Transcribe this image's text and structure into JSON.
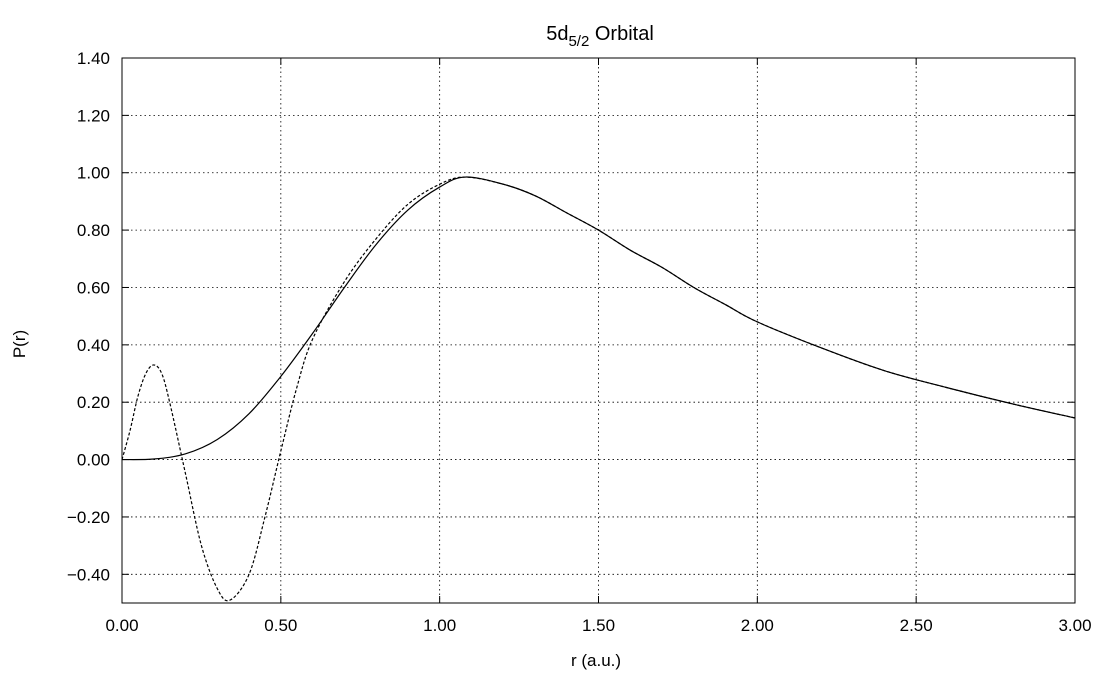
{
  "chart_data": {
    "type": "line",
    "title": {
      "main": "5d",
      "subscript": "5/2",
      "suffix": " Orbital"
    },
    "xlabel": "r (a.u.)",
    "ylabel": "P(r)",
    "xlim": [
      0,
      3.0
    ],
    "ylim": [
      -0.5,
      1.4
    ],
    "x_ticks": [
      0,
      0.5,
      1.0,
      1.5,
      2.0,
      2.5,
      3.0
    ],
    "x_tick_labels": [
      "0.00",
      "0.50",
      "1.00",
      "1.50",
      "2.00",
      "2.50",
      "3.00"
    ],
    "y_ticks": [
      -0.4,
      -0.2,
      0,
      0.2,
      0.4,
      0.6,
      0.8,
      1.0,
      1.2,
      1.4
    ],
    "y_tick_labels": [
      "−0.40",
      "−0.20",
      "0.00",
      "0.20",
      "0.40",
      "0.60",
      "0.80",
      "1.00",
      "1.20",
      "1.40"
    ],
    "grid": true,
    "series": [
      {
        "style": "solid",
        "color": "#000000",
        "points": [
          [
            0,
            0
          ],
          [
            0.1,
            0.002
          ],
          [
            0.2,
            0.02
          ],
          [
            0.3,
            0.07
          ],
          [
            0.4,
            0.16
          ],
          [
            0.5,
            0.29
          ],
          [
            0.6,
            0.44
          ],
          [
            0.7,
            0.6
          ],
          [
            0.8,
            0.75
          ],
          [
            0.9,
            0.87
          ],
          [
            1.0,
            0.95
          ],
          [
            1.08,
            0.985
          ],
          [
            1.2,
            0.96
          ],
          [
            1.3,
            0.92
          ],
          [
            1.4,
            0.86
          ],
          [
            1.5,
            0.8
          ],
          [
            1.6,
            0.73
          ],
          [
            1.7,
            0.67
          ],
          [
            1.8,
            0.6
          ],
          [
            1.9,
            0.54
          ],
          [
            2.0,
            0.48
          ],
          [
            2.2,
            0.39
          ],
          [
            2.4,
            0.31
          ],
          [
            2.6,
            0.25
          ],
          [
            2.8,
            0.195
          ],
          [
            3.0,
            0.145
          ]
        ]
      },
      {
        "style": "dashed",
        "color": "#000000",
        "points": [
          [
            0,
            0
          ],
          [
            0.025,
            0.1
          ],
          [
            0.05,
            0.22
          ],
          [
            0.075,
            0.3
          ],
          [
            0.1,
            0.33
          ],
          [
            0.125,
            0.3
          ],
          [
            0.15,
            0.2
          ],
          [
            0.2,
            -0.05
          ],
          [
            0.25,
            -0.3
          ],
          [
            0.3,
            -0.45
          ],
          [
            0.34,
            -0.49
          ],
          [
            0.4,
            -0.4
          ],
          [
            0.45,
            -0.2
          ],
          [
            0.5,
            0.03
          ],
          [
            0.55,
            0.25
          ],
          [
            0.6,
            0.42
          ],
          [
            0.7,
            0.62
          ],
          [
            0.8,
            0.77
          ],
          [
            0.9,
            0.89
          ],
          [
            1.0,
            0.96
          ],
          [
            1.08,
            0.985
          ],
          [
            1.2,
            0.96
          ],
          [
            1.3,
            0.92
          ],
          [
            1.4,
            0.86
          ],
          [
            1.5,
            0.8
          ],
          [
            1.6,
            0.73
          ],
          [
            1.7,
            0.67
          ],
          [
            1.8,
            0.6
          ],
          [
            1.9,
            0.54
          ],
          [
            2.0,
            0.48
          ],
          [
            2.2,
            0.39
          ],
          [
            2.4,
            0.31
          ],
          [
            2.6,
            0.25
          ],
          [
            2.8,
            0.195
          ],
          [
            3.0,
            0.145
          ]
        ]
      }
    ]
  }
}
